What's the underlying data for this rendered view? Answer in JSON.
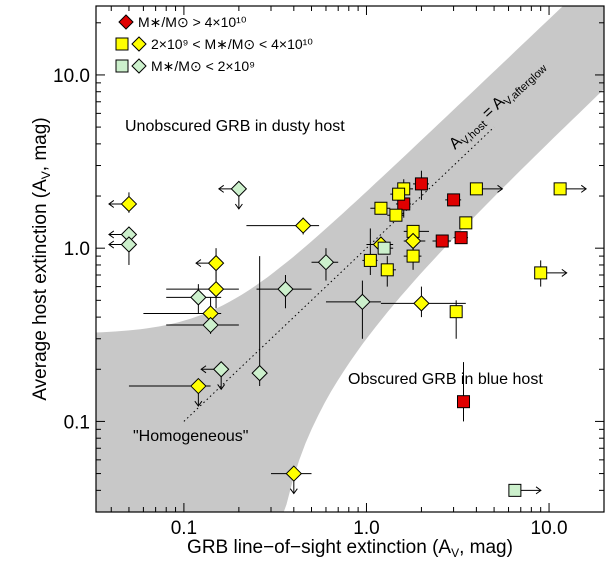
{
  "chart_data": {
    "type": "scatter",
    "xlabel": "GRB line−of−sight extinction (A",
    "xlabel_sub": "V",
    "xlabel_tail": ", mag)",
    "ylabel": "Average host extinction (A",
    "ylabel_sub": "V",
    "ylabel_tail": ", mag)",
    "xscale": "log",
    "yscale": "log",
    "xlim": [
      0.033,
      20
    ],
    "ylim": [
      0.03,
      25
    ],
    "xticks": [
      {
        "v": 0.1,
        "label": "0.1"
      },
      {
        "v": 1.0,
        "label": "1.0"
      },
      {
        "v": 10.0,
        "label": "10.0"
      }
    ],
    "yticks": [
      {
        "v": 0.1,
        "label": "0.1"
      },
      {
        "v": 1.0,
        "label": "1.0"
      },
      {
        "v": 10.0,
        "label": "10.0"
      }
    ],
    "colors": {
      "high_mass": "#e00000",
      "mid_mass": "#ffff00",
      "low_mass": "#ccf0cc",
      "band": "#c8c8c8"
    },
    "legend": {
      "placement": "top-left",
      "entries": [
        {
          "series": "high",
          "label": "M∗/M⊙ > 4×10¹⁰"
        },
        {
          "series": "mid",
          "label": "2×10⁹ < M∗/M⊙ < 4×10¹⁰"
        },
        {
          "series": "low",
          "label": "M∗/M⊙ < 2×10⁹"
        }
      ]
    },
    "annotations": {
      "upper": "Unobscured GRB in dusty host",
      "lower": "Obscured GRB in blue host",
      "homog": "\"Homogeneous\"",
      "line_lhs": "A",
      "line_lhs_sub": "V,host",
      "line_eq": " = A",
      "line_rhs_sub": "V,afterglow"
    },
    "series": [
      {
        "id": "high",
        "marker": "square",
        "color": "#e00000",
        "points": [
          {
            "x": 1.6,
            "y": 1.8,
            "xerr": [
              1.45,
              1.75
            ],
            "yerr": [
              1.5,
              2.2
            ]
          },
          {
            "x": 2.0,
            "y": 2.35,
            "xerr": [
              1.8,
              2.2
            ],
            "yerr": [
              1.9,
              2.8
            ]
          },
          {
            "x": 3.0,
            "y": 1.9,
            "xerr": [
              2.7,
              3.3
            ]
          },
          {
            "x": 2.6,
            "y": 1.1,
            "xerr": [
              2.3,
              2.9
            ]
          },
          {
            "x": 3.3,
            "y": 1.15,
            "xerr": [
              3.0,
              3.6
            ]
          },
          {
            "x": 3.4,
            "y": 0.13,
            "yerr": [
              0.1,
              0.22
            ]
          }
        ]
      },
      {
        "id": "mid-sq",
        "marker": "square",
        "color": "#ffff00",
        "points": [
          {
            "x": 1.6,
            "y": 2.2,
            "xerr": [
              1.4,
              1.8
            ],
            "yerr": [
              1.9,
              2.5
            ]
          },
          {
            "x": 1.5,
            "y": 2.05,
            "xerr": [
              1.35,
              1.65
            ]
          },
          {
            "x": 1.2,
            "y": 1.7,
            "xerr": [
              1.05,
              1.35
            ]
          },
          {
            "x": 1.45,
            "y": 1.55,
            "xerr": [
              1.3,
              1.6
            ]
          },
          {
            "x": 4.0,
            "y": 2.2,
            "xlower": true
          },
          {
            "x": 11.5,
            "y": 2.2,
            "xlower": true
          },
          {
            "x": 1.8,
            "y": 1.25,
            "xerr": [
              1.6,
              2.2
            ]
          },
          {
            "x": 1.05,
            "y": 0.85,
            "xerr": [
              0.95,
              1.15
            ],
            "yerr": [
              0.7,
              1.3
            ]
          },
          {
            "x": 1.3,
            "y": 0.75,
            "xerr": [
              1.2,
              1.45
            ],
            "yerr": [
              0.6,
              0.9
            ]
          },
          {
            "x": 1.8,
            "y": 0.9,
            "xerr": [
              1.6,
              2.0
            ],
            "yerr": [
              0.75,
              1.05
            ]
          },
          {
            "x": 3.5,
            "y": 1.4
          },
          {
            "x": 3.1,
            "y": 0.43,
            "xerr": [
              2.9,
              3.3
            ],
            "yerr": [
              0.3,
              0.5
            ]
          },
          {
            "x": 9.0,
            "y": 0.72,
            "xlower": true,
            "yerr": [
              0.6,
              0.85
            ]
          }
        ]
      },
      {
        "id": "mid-di",
        "marker": "diamond",
        "color": "#ffff00",
        "points": [
          {
            "x": 0.05,
            "y": 1.8,
            "xupper": true,
            "yerr": [
              1.6,
              2.1
            ]
          },
          {
            "x": 0.15,
            "y": 0.82,
            "xupper": true,
            "yerr": [
              0.65,
              1.0
            ]
          },
          {
            "x": 0.15,
            "y": 0.58,
            "xerr": [
              0.08,
              0.2
            ],
            "yerr": [
              0.45,
              0.75
            ]
          },
          {
            "x": 0.14,
            "y": 0.42,
            "xerr": [
              0.06,
              0.16
            ],
            "yerr": [
              0.32,
              0.52
            ]
          },
          {
            "x": 0.12,
            "y": 0.16,
            "xerr": [
              0.05,
              0.14
            ],
            "ylower": true
          },
          {
            "x": 0.4,
            "y": 0.05,
            "xerr": [
              0.3,
              0.5
            ],
            "yupper": true
          },
          {
            "x": 0.45,
            "y": 1.35,
            "xerr": [
              0.22,
              0.55
            ],
            "yerr": [
              1.2,
              1.5
            ]
          },
          {
            "x": 1.8,
            "y": 1.1,
            "xerr": [
              1.6,
              2.1
            ],
            "yerr": [
              0.9,
              1.3
            ]
          },
          {
            "x": 2.0,
            "y": 0.48,
            "xerr": [
              1.2,
              3.5
            ],
            "yerr": [
              0.4,
              0.6
            ]
          },
          {
            "x": 1.2,
            "y": 1.05,
            "xerr": [
              1.0,
              1.4
            ]
          }
        ]
      },
      {
        "id": "low-di",
        "marker": "diamond",
        "color": "#ccf0cc",
        "points": [
          {
            "x": 0.05,
            "y": 1.2,
            "xupper": true
          },
          {
            "x": 0.05,
            "y": 1.05,
            "xupper": true,
            "yerr": [
              0.8,
              1.3
            ]
          },
          {
            "x": 0.12,
            "y": 0.52,
            "xerr": [
              0.08,
              0.16
            ],
            "yerr": [
              0.42,
              0.62
            ]
          },
          {
            "x": 0.14,
            "y": 0.36,
            "xerr": [
              0.08,
              0.2
            ]
          },
          {
            "x": 0.16,
            "y": 0.2,
            "xupper": true,
            "ylower": true
          },
          {
            "x": 0.2,
            "y": 2.2,
            "xupper": true,
            "ylower": true
          },
          {
            "x": 0.26,
            "y": 0.19,
            "yerr": [
              0.16,
              0.9
            ]
          },
          {
            "x": 0.36,
            "y": 0.58,
            "xerr": [
              0.25,
              0.5
            ],
            "yerr": [
              0.45,
              0.7
            ]
          },
          {
            "x": 0.6,
            "y": 0.83,
            "xerr": [
              0.5,
              0.7
            ],
            "yerr": [
              0.65,
              1.0
            ]
          },
          {
            "x": 0.95,
            "y": 0.49,
            "xerr": [
              0.6,
              1.2
            ],
            "yerr": [
              0.3,
              0.65
            ]
          }
        ]
      },
      {
        "id": "low-sq",
        "marker": "square",
        "color": "#ccf0cc",
        "points": [
          {
            "x": 1.25,
            "y": 1.0,
            "xerr": [
              1.15,
              1.4
            ]
          },
          {
            "x": 6.5,
            "y": 0.04,
            "xlower": true
          }
        ]
      }
    ]
  }
}
